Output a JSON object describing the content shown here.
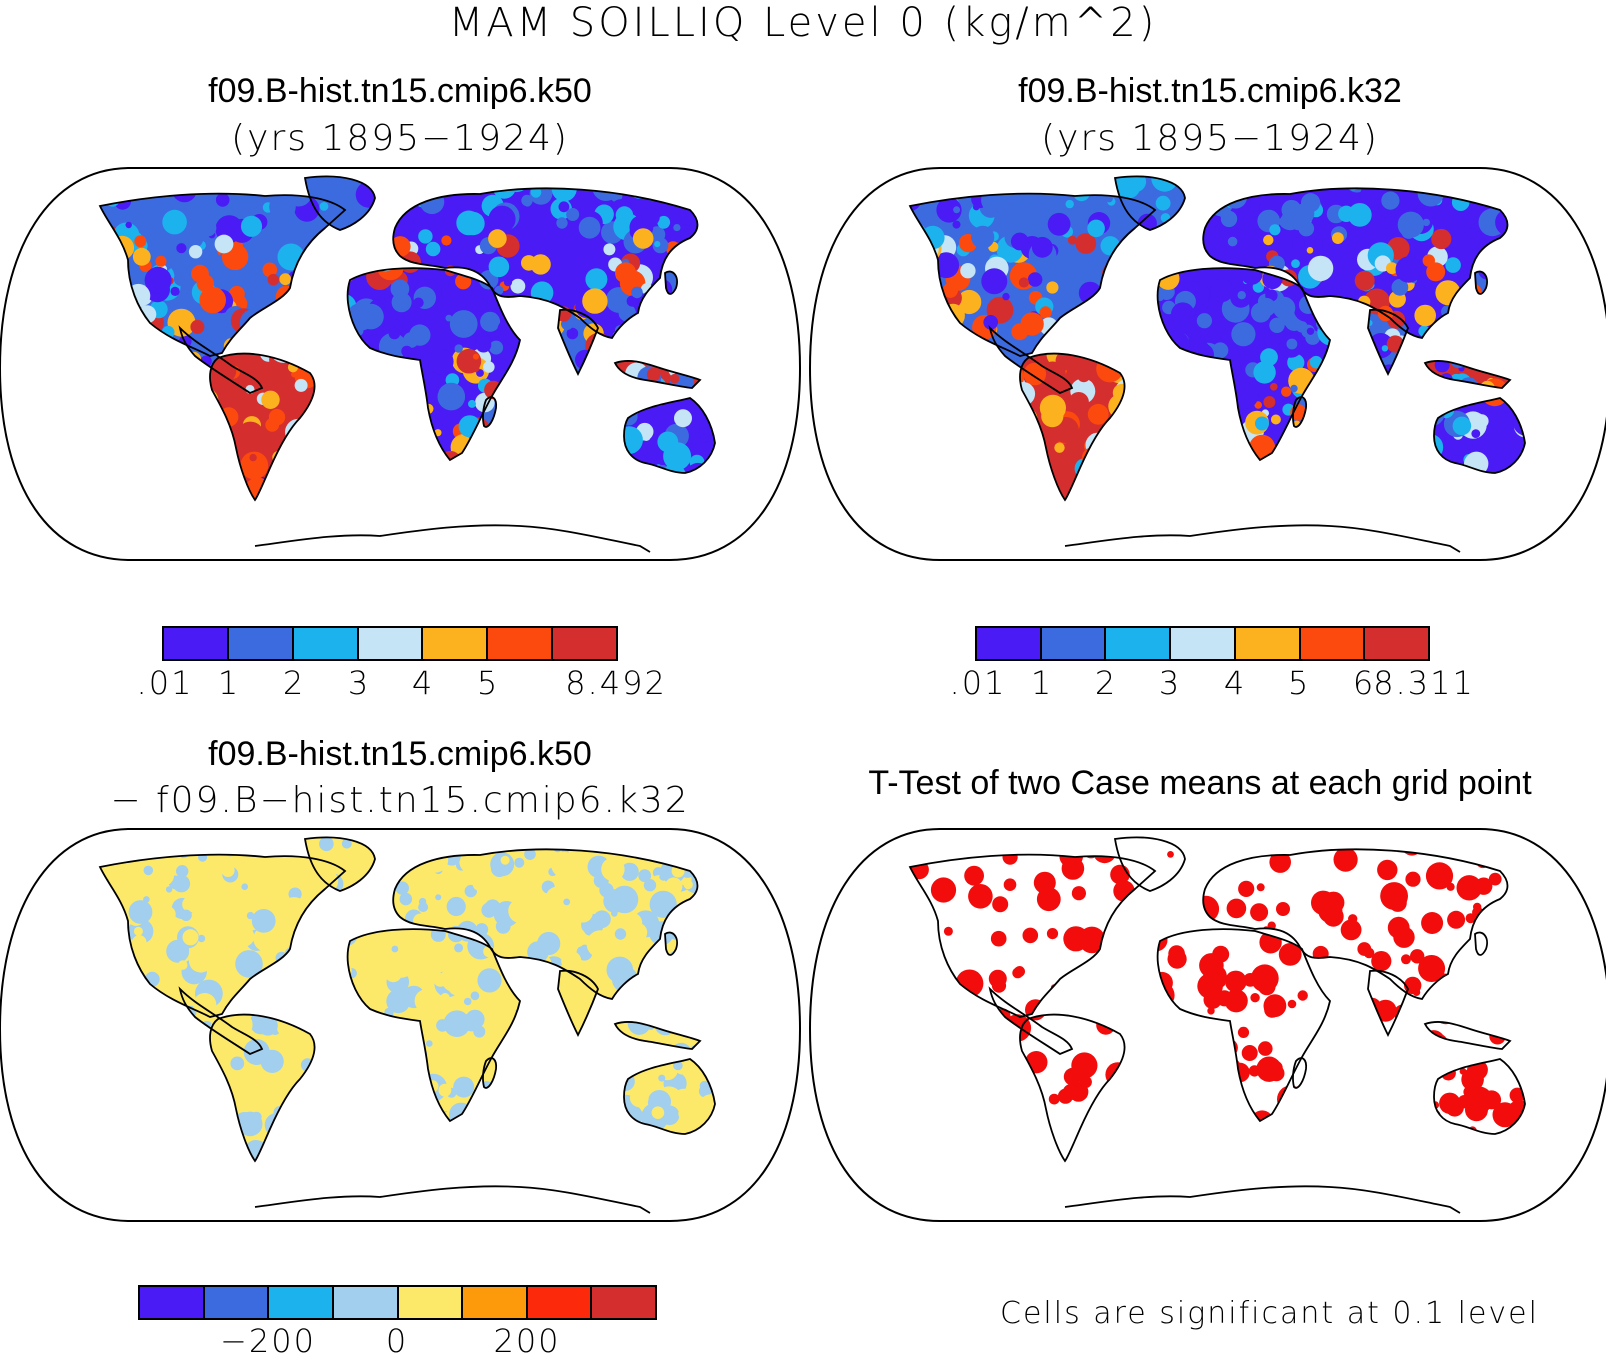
{
  "title": "MAM SOILLIQ Level 0 (kg/m^2)",
  "panels": [
    {
      "title": "f09.B-hist.tn15.cmip6.k50",
      "subtitle": "(yrs 1895−1924)",
      "colorbar": {
        "colors": [
          "#4a1bf5",
          "#3c6be0",
          "#1cb2ee",
          "#c5e4f5",
          "#fcb21e",
          "#fc4a0e",
          "#d42e2e"
        ],
        "labels": [
          ".01",
          "1",
          "2",
          "3",
          "4",
          "5",
          "8.492"
        ]
      }
    },
    {
      "title": "f09.B-hist.tn15.cmip6.k32",
      "subtitle": "(yrs 1895−1924)",
      "colorbar": {
        "colors": [
          "#4a1bf5",
          "#3c6be0",
          "#1cb2ee",
          "#c5e4f5",
          "#fcb21e",
          "#fc4a0e",
          "#d42e2e"
        ],
        "labels": [
          ".01",
          "1",
          "2",
          "3",
          "4",
          "5",
          "6",
          "8.311"
        ]
      }
    },
    {
      "title": "f09.B-hist.tn15.cmip6.k50",
      "subtitle": "− f09.B−hist.tn15.cmip6.k32",
      "colorbar": {
        "colors": [
          "#4a1bf5",
          "#3c6be0",
          "#1cb2ee",
          "#a2cfee",
          "#fce96a",
          "#fc9a0c",
          "#fc2a0a",
          "#d42e2e"
        ],
        "labels": [
          "−200",
          "0",
          "200"
        ]
      }
    },
    {
      "title": "T-Test of two Case means at each grid point",
      "note": "Cells are significant at 0.1 level"
    }
  ]
}
